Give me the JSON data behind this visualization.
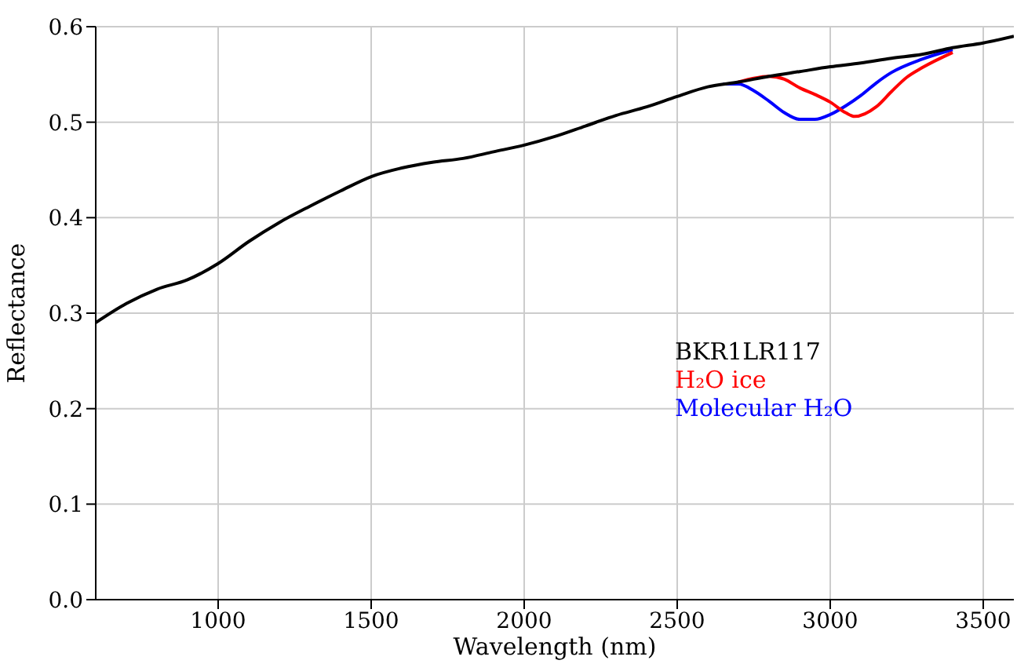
{
  "chart_data": {
    "type": "line",
    "xlabel": "Wavelength (nm)",
    "ylabel": "Reflectance",
    "xlim": [
      600,
      3600
    ],
    "xticks": [
      1000,
      1500,
      2000,
      2500,
      3000,
      3500
    ],
    "ylim": [
      0,
      0.6
    ],
    "yticks": [
      {
        "value": 0,
        "label": "0.0"
      },
      {
        "value": 0.1,
        "label": "0.1"
      },
      {
        "value": 0.2,
        "label": "0.2"
      },
      {
        "value": 0.3,
        "label": "0.3"
      },
      {
        "value": 0.4,
        "label": "0.4"
      },
      {
        "value": 0.5,
        "label": "0.5"
      },
      {
        "value": 0.6,
        "label": "0.6"
      }
    ],
    "grid": true,
    "legend": "right",
    "marker": "none",
    "line_style": "solid",
    "series": [
      {
        "name": "BKR1LR117",
        "color": "#000000",
        "x": [
          600,
          700,
          800,
          900,
          1000,
          1100,
          1200,
          1300,
          1400,
          1500,
          1600,
          1700,
          1800,
          1900,
          2000,
          2100,
          2200,
          2300,
          2400,
          2500,
          2600,
          2700,
          2800,
          2900,
          3000,
          3100,
          3200,
          3300,
          3400,
          3500,
          3600
        ],
        "values": [
          0.29,
          0.31,
          0.325,
          0.335,
          0.352,
          0.375,
          0.395,
          0.412,
          0.428,
          0.443,
          0.452,
          0.458,
          0.462,
          0.469,
          0.476,
          0.485,
          0.496,
          0.507,
          0.516,
          0.527,
          0.537,
          0.542,
          0.548,
          0.553,
          0.558,
          0.562,
          0.567,
          0.571,
          0.578,
          0.583,
          0.59
        ]
      },
      {
        "name": "H₂O ice",
        "color": "#ff0000",
        "x": [
          2700,
          2750,
          2800,
          2850,
          2900,
          2950,
          3000,
          3050,
          3080,
          3150,
          3200,
          3250,
          3300,
          3400
        ],
        "values": [
          0.542,
          0.546,
          0.548,
          0.545,
          0.536,
          0.529,
          0.521,
          0.51,
          0.506,
          0.516,
          0.532,
          0.547,
          0.557,
          0.573
        ]
      },
      {
        "name": "Molecular H₂O",
        "color": "#0000ff",
        "x": [
          2650,
          2700,
          2750,
          2800,
          2850,
          2900,
          2950,
          3000,
          3050,
          3100,
          3150,
          3200,
          3300,
          3400
        ],
        "values": [
          0.54,
          0.54,
          0.533,
          0.522,
          0.51,
          0.503,
          0.503,
          0.508,
          0.517,
          0.528,
          0.541,
          0.552,
          0.566,
          0.576
        ]
      }
    ]
  }
}
